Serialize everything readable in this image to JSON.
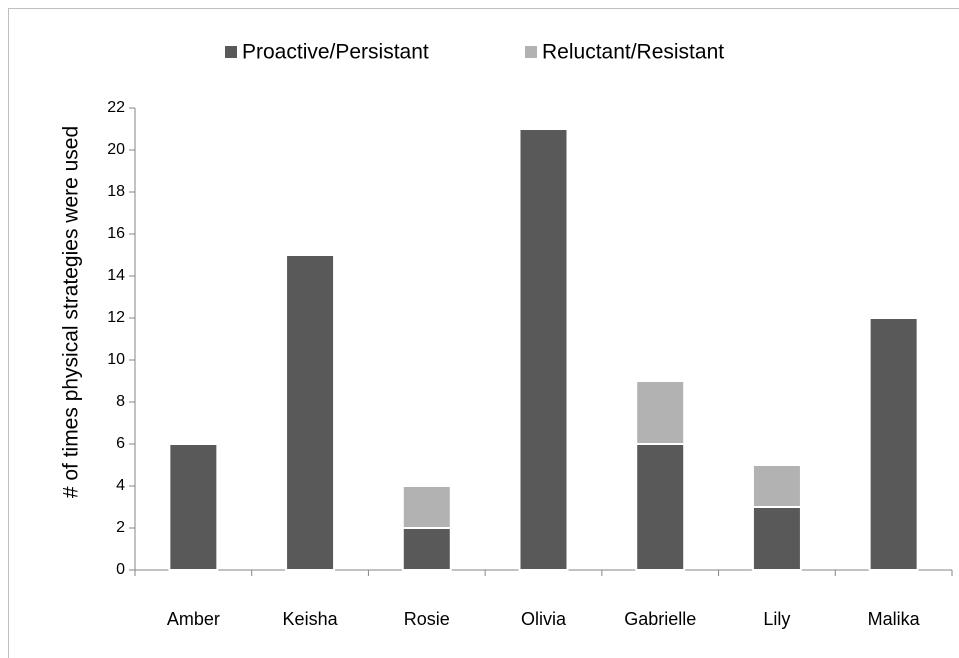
{
  "chart_data": {
    "type": "stacked_bar",
    "y_label": "# of times  physical strategies were used",
    "categories": [
      "Amber",
      "Keisha",
      "Rosie",
      "Olivia",
      "Gabrielle",
      "Lily",
      "Malika"
    ],
    "series": [
      {
        "name": "Proactive/Persistant",
        "color": "#595959",
        "values": [
          6,
          15,
          2,
          21,
          6,
          3,
          12
        ]
      },
      {
        "name": "Reluctant/Resistant",
        "color": "#b2b2b2",
        "values": [
          0,
          0,
          2,
          0,
          3,
          2,
          0
        ]
      }
    ],
    "ylim": [
      0,
      22
    ],
    "yticks": [
      0,
      2,
      4,
      6,
      8,
      10,
      12,
      14,
      16,
      18,
      20,
      22
    ],
    "legend": "top"
  }
}
